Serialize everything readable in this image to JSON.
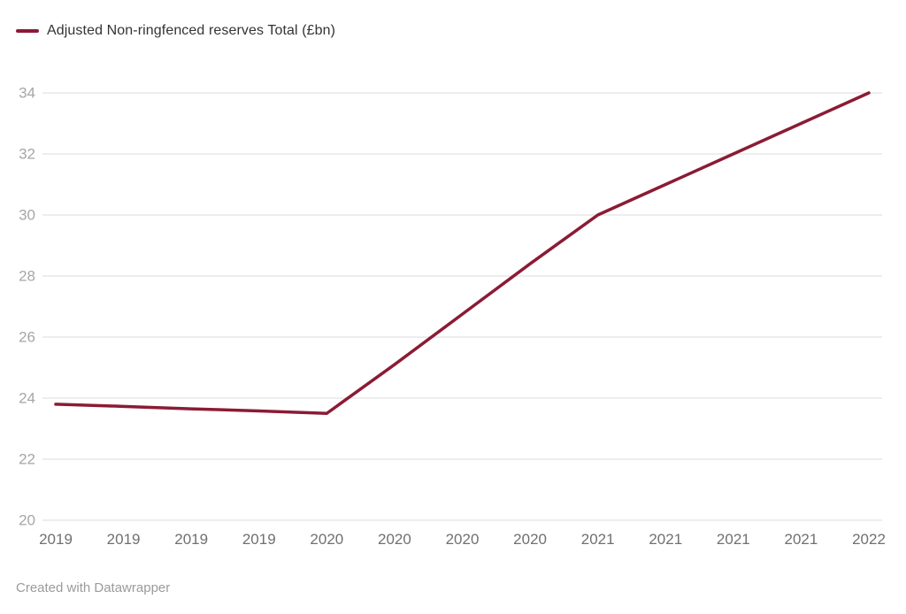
{
  "legend": {
    "swatch_color": "#8b1b35"
  },
  "footer": {
    "text": "Created with Datawrapper"
  },
  "chart_data": {
    "type": "line",
    "title": "",
    "categories": [
      "2019",
      "2019",
      "2019",
      "2019",
      "2020",
      "2020",
      "2020",
      "2020",
      "2021",
      "2021",
      "2021",
      "2021",
      "2022"
    ],
    "series": [
      {
        "name": "Adjusted Non-ringfenced reserves Total (£bn)",
        "values": [
          23.8,
          23.73,
          23.65,
          23.58,
          23.5,
          25.1,
          26.75,
          28.4,
          30,
          31,
          32,
          33,
          34
        ]
      }
    ],
    "ylim": [
      20,
      34
    ],
    "yticks": [
      20,
      22,
      24,
      26,
      28,
      30,
      32,
      34
    ],
    "grid": true,
    "legend_position": "top-left",
    "colors": {
      "line": "#8b1b35",
      "gridline": "#e7e7e7",
      "y_tick_label": "#a6a6a6",
      "x_tick_label": "#707070",
      "legend_text": "#333333",
      "footer_text": "#9b9b9b"
    }
  }
}
